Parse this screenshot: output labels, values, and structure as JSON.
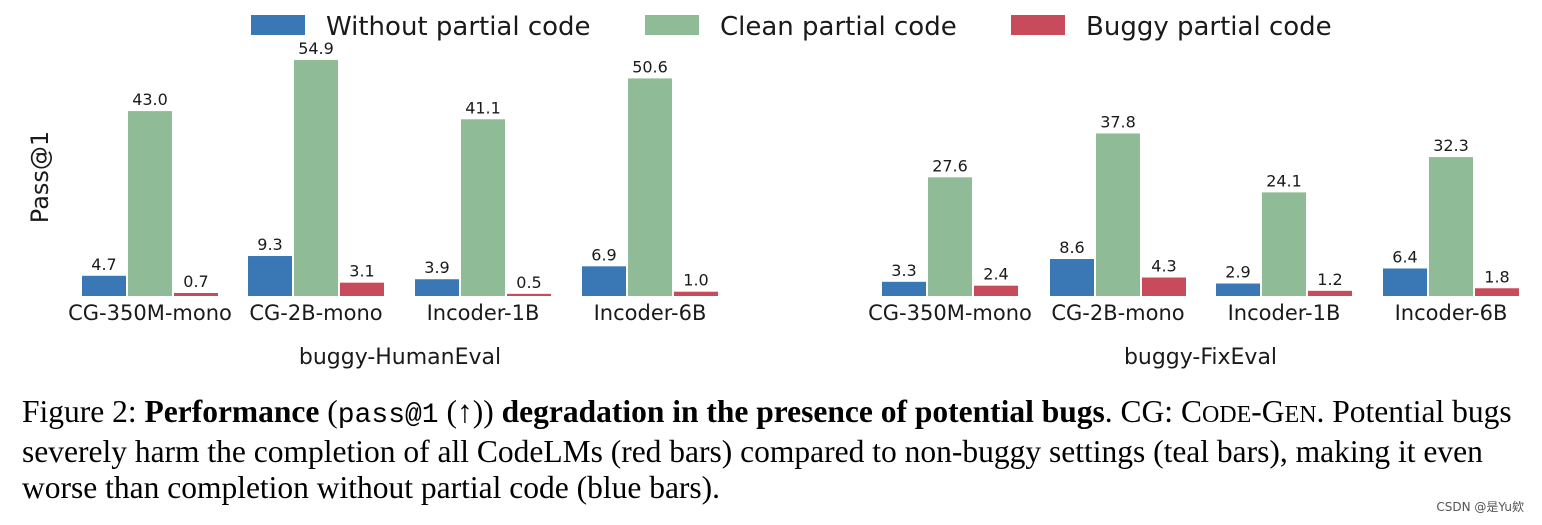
{
  "chart_data": {
    "type": "bar",
    "ylabel": "Pass@1",
    "ylim": [
      0,
      60
    ],
    "legend": {
      "position": "top-center",
      "entries": [
        {
          "name": "Without partial code",
          "color": "#3a78b5"
        },
        {
          "name": "Clean partial code",
          "color": "#8fbc96"
        },
        {
          "name": "Buggy partial code",
          "color": "#c84b5c"
        }
      ]
    },
    "panels": [
      {
        "title": "buggy-HumanEval",
        "categories": [
          "CG-350M-mono",
          "CG-2B-mono",
          "Incoder-1B",
          "Incoder-6B"
        ],
        "series": [
          {
            "name": "Without partial code",
            "values": [
              4.7,
              9.3,
              3.9,
              6.9
            ],
            "labels": [
              "4.7",
              "9.3",
              "3.9",
              "6.9"
            ]
          },
          {
            "name": "Clean partial code",
            "values": [
              43.0,
              54.9,
              41.1,
              50.6
            ],
            "labels": [
              "43.0",
              "54.9",
              "41.1",
              "50.6"
            ]
          },
          {
            "name": "Buggy partial code",
            "values": [
              0.7,
              3.1,
              0.5,
              1.0
            ],
            "labels": [
              "0.7",
              "3.1",
              "0.5",
              "1.0"
            ]
          }
        ]
      },
      {
        "title": "buggy-FixEval",
        "categories": [
          "CG-350M-mono",
          "CG-2B-mono",
          "Incoder-1B",
          "Incoder-6B"
        ],
        "series": [
          {
            "name": "Without partial code",
            "values": [
              3.3,
              8.6,
              2.9,
              6.4
            ],
            "labels": [
              "3.3",
              "8.6",
              "2.9",
              "6.4"
            ]
          },
          {
            "name": "Clean partial code",
            "values": [
              27.6,
              37.8,
              24.1,
              32.3
            ],
            "labels": [
              "27.6",
              "37.8",
              "24.1",
              "32.3"
            ]
          },
          {
            "name": "Buggy partial code",
            "values": [
              2.4,
              4.3,
              1.2,
              1.8
            ],
            "labels": [
              "2.4",
              "4.3",
              "1.2",
              "1.8"
            ]
          }
        ]
      }
    ]
  },
  "caption": {
    "prefix": "Figure 2: ",
    "bold1": "Performance",
    "paren_open": " (",
    "mono": "pass@1",
    "arrow": " (↑))",
    "bold2": " degradation in the presence of potential bugs",
    "mid": ". CG: ",
    "sc_c": "C",
    "sc_ode": "ODE",
    "dash": "-",
    "sc_g": "G",
    "sc_en": "EN",
    "rest": ". Potential bugs severely harm the completion of all CodeLMs (red bars) compared to non-buggy settings (teal bars), making it even worse than completion without partial code (blue bars)."
  },
  "watermark": "CSDN @是Yu欸"
}
